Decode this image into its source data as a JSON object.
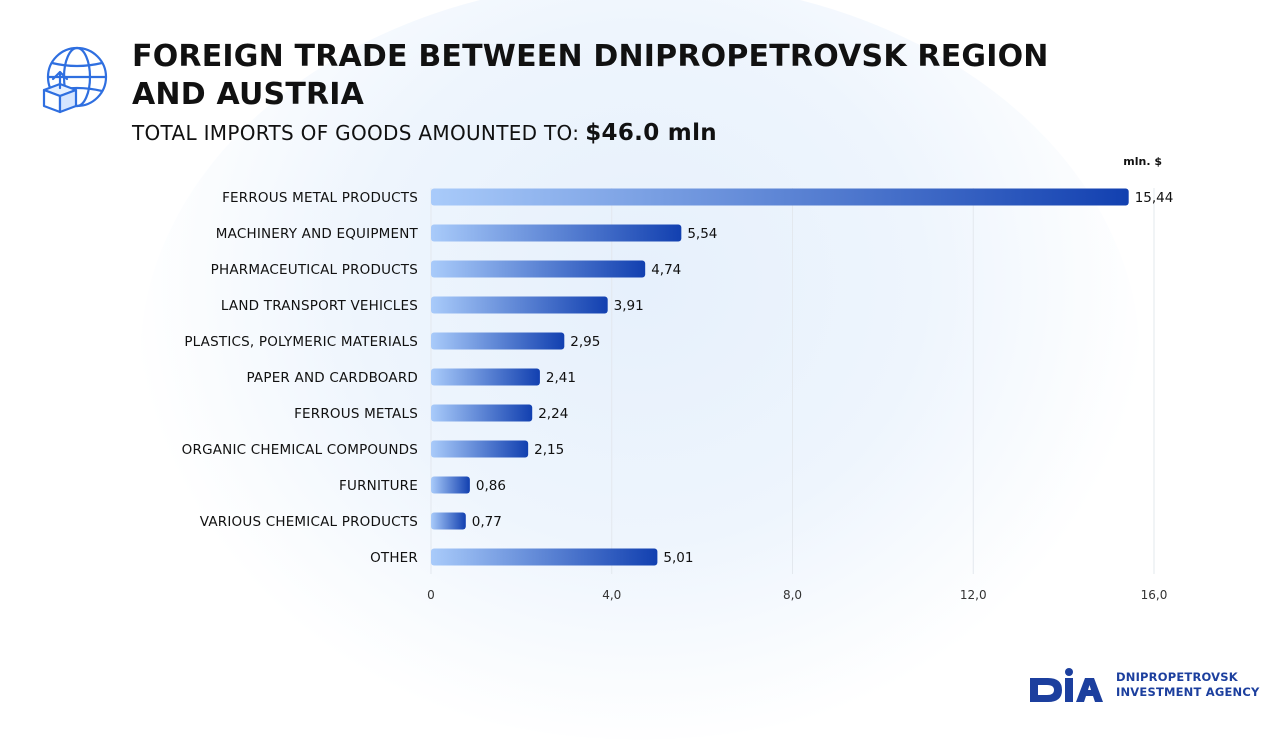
{
  "header": {
    "title": "FOREIGN TRADE BETWEEN DNIPROPETROVSK REGION AND AUSTRIA",
    "subtitle_label": "TOTAL IMPORTS OF GOODS AMOUNTED TO:",
    "subtitle_value": "$46.0  mln",
    "icon": "globe-box-upload-icon"
  },
  "logo": {
    "mark": "DIA",
    "line1": "DNIPROPETROVSK",
    "line2": "INVESTMENT AGENCY"
  },
  "colors": {
    "bar_start": "#a9cbfa",
    "bar_end": "#1240b0",
    "text": "#111111",
    "grid": "#e3e8ee",
    "logo_blue": "#1c3f9e"
  },
  "chart_data": {
    "type": "bar",
    "orientation": "horizontal",
    "unit_label": "mln. $",
    "categories": [
      "FERROUS METAL PRODUCTS",
      "MACHINERY AND EQUIPMENT",
      "PHARMACEUTICAL PRODUCTS",
      "LAND TRANSPORT VEHICLES",
      "PLASTICS, POLYMERIC MATERIALS",
      "PAPER AND CARDBOARD",
      "FERROUS METALS",
      "ORGANIC CHEMICAL COMPOUNDS",
      "FURNITURE",
      "VARIOUS CHEMICAL PRODUCTS",
      "OTHER"
    ],
    "values": [
      15.44,
      5.54,
      4.74,
      3.91,
      2.95,
      2.41,
      2.24,
      2.15,
      0.86,
      0.77,
      5.01
    ],
    "value_labels": [
      "15,44",
      "5,54",
      "4,74",
      "3,91",
      "2,95",
      "2,41",
      "2,24",
      "2,15",
      "0,86",
      "0,77",
      "5,01"
    ],
    "xlim": [
      0,
      16
    ],
    "xticks": [
      0,
      4,
      8,
      12,
      16
    ],
    "xtick_labels": [
      "0",
      "4,0",
      "8,0",
      "12,0",
      "16,0"
    ],
    "grid": true
  }
}
